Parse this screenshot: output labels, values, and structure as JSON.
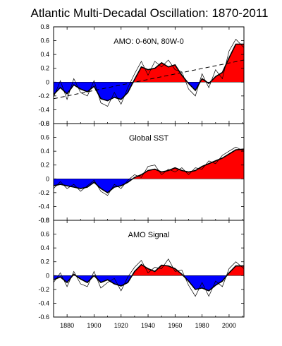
{
  "title": "Atlantic Multi-Decadal Oscillation: 1870-2011",
  "colors": {
    "positive": "#ff0000",
    "negative": "#0000ff",
    "line": "#000000"
  },
  "chart_data": [
    {
      "type": "area",
      "label": "AMO: 0-60N, 80W-0",
      "xlim": [
        1870,
        2011
      ],
      "ylim": [
        -0.6,
        0.8
      ],
      "yticks": [
        "-0.6",
        "-0.4",
        "-0.2",
        "0",
        "0.2",
        "0.4",
        "0.6",
        "0.8"
      ],
      "grid": false,
      "x": [
        1870,
        1875,
        1880,
        1885,
        1890,
        1895,
        1900,
        1905,
        1910,
        1915,
        1920,
        1925,
        1930,
        1935,
        1940,
        1945,
        1950,
        1955,
        1960,
        1965,
        1970,
        1975,
        1980,
        1985,
        1990,
        1995,
        2000,
        2005,
        2011
      ],
      "smooth": [
        -0.18,
        -0.08,
        -0.17,
        -0.04,
        -0.1,
        -0.14,
        -0.06,
        -0.24,
        -0.27,
        -0.22,
        -0.25,
        -0.15,
        0.04,
        0.22,
        0.18,
        0.2,
        0.28,
        0.22,
        0.25,
        0.1,
        -0.02,
        -0.12,
        0.05,
        -0.02,
        0.08,
        0.14,
        0.35,
        0.55,
        0.55
      ],
      "raw": [
        -0.22,
        0.02,
        -0.25,
        0.05,
        -0.15,
        -0.2,
        0.02,
        -0.3,
        -0.35,
        -0.15,
        -0.32,
        -0.08,
        0.12,
        0.3,
        0.1,
        0.3,
        0.22,
        0.32,
        0.18,
        0.15,
        -0.1,
        -0.2,
        0.12,
        -0.08,
        0.18,
        0.05,
        0.45,
        0.62,
        0.5
      ],
      "trend": {
        "x": [
          1870,
          2011
        ],
        "y": [
          -0.24,
          0.32
        ]
      }
    },
    {
      "type": "area",
      "label": "Global SST",
      "xlim": [
        1870,
        2011
      ],
      "ylim": [
        -0.6,
        0.8
      ],
      "yticks": [
        "-0.6",
        "-0.4",
        "-0.2",
        "0",
        "0.2",
        "0.4",
        "0.6",
        "0.8"
      ],
      "grid": false,
      "x": [
        1870,
        1875,
        1880,
        1885,
        1890,
        1895,
        1900,
        1905,
        1910,
        1915,
        1920,
        1925,
        1930,
        1935,
        1940,
        1945,
        1950,
        1955,
        1960,
        1965,
        1970,
        1975,
        1980,
        1985,
        1990,
        1995,
        2000,
        2005,
        2011
      ],
      "smooth": [
        -0.1,
        -0.08,
        -0.1,
        -0.12,
        -0.14,
        -0.12,
        -0.05,
        -0.14,
        -0.2,
        -0.12,
        -0.1,
        -0.05,
        0.02,
        0.06,
        0.12,
        0.14,
        0.1,
        0.12,
        0.16,
        0.12,
        0.1,
        0.12,
        0.18,
        0.22,
        0.26,
        0.3,
        0.36,
        0.42,
        0.43
      ],
      "raw": [
        -0.14,
        -0.04,
        -0.14,
        -0.08,
        -0.18,
        -0.1,
        -0.02,
        -0.18,
        -0.24,
        -0.08,
        -0.14,
        -0.02,
        0.06,
        0.02,
        0.18,
        0.2,
        0.06,
        0.14,
        0.1,
        0.16,
        0.06,
        0.16,
        0.14,
        0.26,
        0.22,
        0.34,
        0.4,
        0.46,
        0.4
      ]
    },
    {
      "type": "area",
      "label": "AMO Signal",
      "xlim": [
        1870,
        2011
      ],
      "ylim": [
        -0.6,
        0.8
      ],
      "yticks": [
        "-0.6",
        "-0.4",
        "-0.2",
        "0",
        "0.2",
        "0.4",
        "0.6",
        "0.8"
      ],
      "xticks": [
        "1880",
        "1900",
        "1920",
        "1940",
        "1960",
        "1980",
        "2000"
      ],
      "grid": false,
      "x": [
        1870,
        1875,
        1880,
        1885,
        1890,
        1895,
        1900,
        1905,
        1910,
        1915,
        1920,
        1925,
        1930,
        1935,
        1940,
        1945,
        1950,
        1955,
        1960,
        1965,
        1970,
        1975,
        1980,
        1985,
        1990,
        1995,
        2000,
        2005,
        2011
      ],
      "smooth": [
        -0.06,
        -0.02,
        -0.1,
        0.02,
        -0.05,
        -0.1,
        0.0,
        -0.1,
        -0.06,
        -0.12,
        -0.15,
        -0.1,
        0.06,
        0.16,
        0.1,
        0.06,
        0.15,
        0.14,
        0.1,
        0.02,
        -0.08,
        -0.2,
        -0.18,
        -0.22,
        -0.14,
        -0.08,
        0.04,
        0.14,
        0.14
      ],
      "raw": [
        -0.1,
        0.04,
        -0.16,
        0.06,
        -0.12,
        -0.16,
        0.06,
        -0.18,
        -0.1,
        -0.04,
        -0.22,
        -0.02,
        0.12,
        0.22,
        0.04,
        0.12,
        0.1,
        0.24,
        0.06,
        0.08,
        -0.14,
        -0.3,
        -0.1,
        -0.3,
        -0.08,
        -0.16,
        0.1,
        0.2,
        0.1
      ]
    }
  ]
}
